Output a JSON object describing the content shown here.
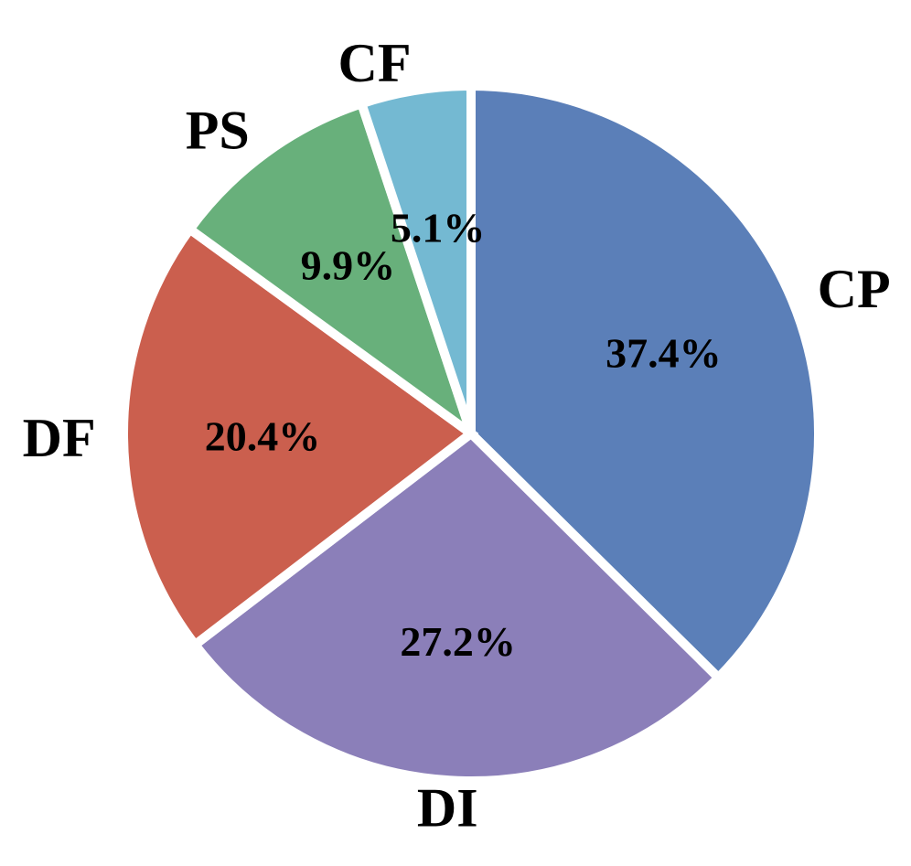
{
  "chart_data": {
    "type": "pie",
    "title": "",
    "start_angle_deg": 0,
    "direction": "clockwise",
    "slices": [
      {
        "label": "CP",
        "value": 37.4,
        "value_label": "37.4%",
        "color": "#5B7FB8"
      },
      {
        "label": "DI",
        "value": 27.2,
        "value_label": "27.2%",
        "color": "#8B7FB9"
      },
      {
        "label": "DF",
        "value": 20.4,
        "value_label": "20.4%",
        "color": "#CB5F4E"
      },
      {
        "label": "PS",
        "value": 9.9,
        "value_label": "9.9%",
        "color": "#68B07B"
      },
      {
        "label": "CF",
        "value": 5.1,
        "value_label": "5.1%",
        "color": "#74B9D2"
      }
    ],
    "legend": "none",
    "labels_outside": true,
    "value_labels_inside": true
  }
}
